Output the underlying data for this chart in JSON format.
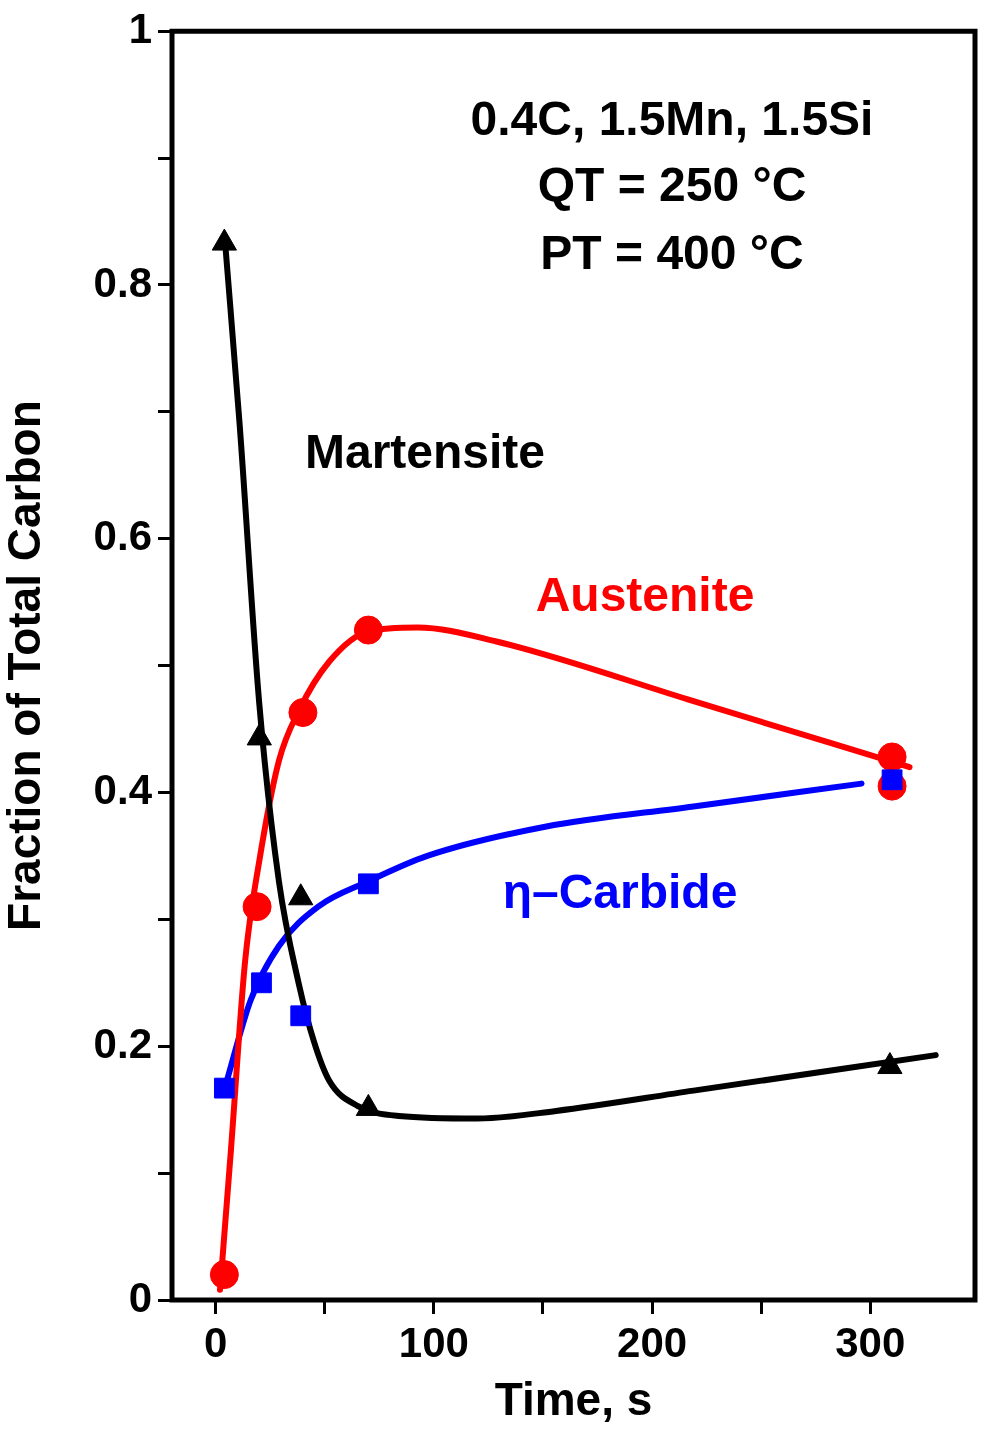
{
  "chart_data": {
    "type": "scatter",
    "xlabel": "Time, s",
    "ylabel": "Fraction of Total Carbon",
    "annotations": [
      "0.4C, 1.5Mn, 1.5Si",
      "QT = 250 °C",
      "PT = 400 °C"
    ],
    "xlim": [
      -20,
      348
    ],
    "ylim": [
      0,
      1
    ],
    "xticks": [
      0,
      {
        "value": 50,
        "label": null
      },
      100,
      {
        "value": 150,
        "label": null
      },
      200,
      {
        "value": 250,
        "label": null
      },
      300
    ],
    "yticks": [
      0,
      {
        "value": 0.1,
        "label": null
      },
      0.2,
      {
        "value": 0.3,
        "label": null
      },
      0.4,
      {
        "value": 0.5,
        "label": null
      },
      0.6,
      {
        "value": 0.7,
        "label": null
      },
      0.8,
      {
        "value": 0.9,
        "label": null
      },
      1
    ],
    "grid": false,
    "series": [
      {
        "type": "line",
        "marker": "none",
        "color": "#000000",
        "x": [
          4.5,
          11,
          20,
          29,
          38,
          45,
          52,
          65,
          84,
          120,
          156,
          219,
          330
        ],
        "values": [
          0.83,
          0.69,
          0.47,
          0.33,
          0.25,
          0.204,
          0.173,
          0.153,
          0.145,
          0.143,
          0.149,
          0.165,
          0.193
        ]
      },
      {
        "type": "line",
        "marker": "none",
        "color": "#ff0000",
        "x": [
          2,
          7,
          13.5,
          20,
          29,
          38,
          52,
          70,
          92.5,
          128.7,
          219,
          318
        ],
        "values": [
          0.008,
          0.118,
          0.267,
          0.346,
          0.425,
          0.464,
          0.503,
          0.527,
          0.53,
          0.519,
          0.472,
          0.42
        ]
      },
      {
        "type": "line",
        "marker": "none",
        "color": "#0000ff",
        "x": [
          4.5,
          16,
          29,
          47,
          70,
          97,
          151,
          219,
          296
        ],
        "values": [
          0.169,
          0.236,
          0.279,
          0.31,
          0.33,
          0.35,
          0.373,
          0.389,
          0.407
        ]
      },
      {
        "type": "scatter",
        "name": "Martensite",
        "marker": "triangle",
        "color": "#000000",
        "x": [
          4,
          20,
          39,
          70,
          309
        ],
        "values": [
          0.833,
          0.443,
          0.317,
          0.151,
          0.184
        ]
      },
      {
        "type": "scatter",
        "name": "Austenite",
        "marker": "circle",
        "color": "#ff0000",
        "x": [
          4,
          19,
          40,
          70,
          310,
          310
        ],
        "values": [
          0.02,
          0.31,
          0.463,
          0.528,
          0.428,
          0.405
        ]
      },
      {
        "type": "scatter",
        "name": "η–Carbide",
        "marker": "square",
        "color": "#0000ff",
        "x": [
          4,
          21,
          39,
          70,
          310
        ],
        "values": [
          0.167,
          0.25,
          0.224,
          0.328,
          0.41
        ]
      }
    ]
  }
}
